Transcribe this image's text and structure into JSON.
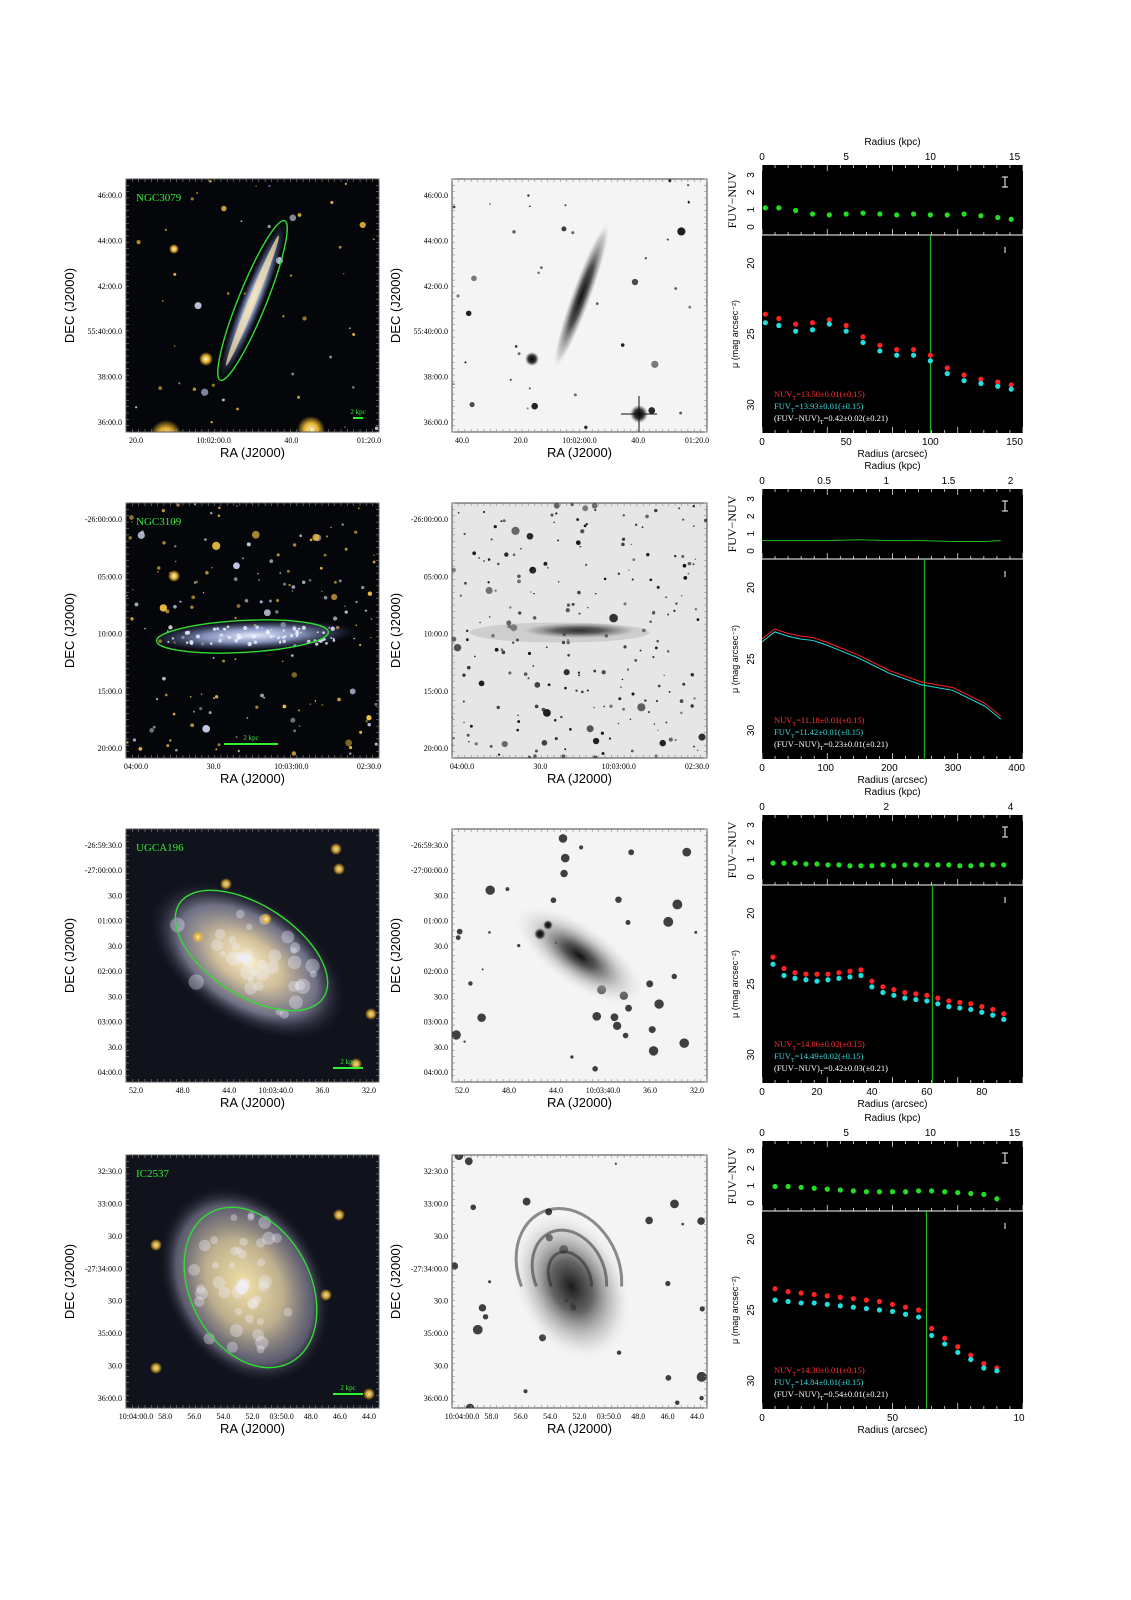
{
  "figure": {
    "rows": [
      {
        "galaxy": "NGC3079",
        "scale_bar_label": "2 kpc",
        "ra_label": "RA (J2000)",
        "dec_label": "DEC (J2000)",
        "color_image": {
          "dec_ticks": [
            "46:00.0",
            "44:00.0",
            "42:00.0",
            "55:40:00.0",
            "38:00.0",
            "36:00.0"
          ],
          "ra_ticks": [
            "20.0",
            "10:02:00.0",
            "40.0",
            "01:20.0"
          ]
        },
        "gray_image": {
          "dec_ticks": [
            "46:00.0",
            "44:00.0",
            "42:00.0",
            "55:40:00.0",
            "38:00.0",
            "36:00.0"
          ],
          "ra_ticks": [
            "40.0",
            "20.0",
            "10:02:00.0",
            "40.0",
            "01:20.0"
          ]
        },
        "profile": {
          "top_axis_label": "Radius (kpc)",
          "top_ticks": [
            "0",
            "5",
            "10",
            "15"
          ],
          "color_ylabel": "FUV−NUV",
          "color_yticks": [
            "3",
            "2",
            "1",
            "0"
          ],
          "sb_ylabel": "μ (mag arcsec⁻²)",
          "sb_yticks": [
            "20",
            "25",
            "30"
          ],
          "xlabel": "Radius (arcsec)",
          "x_ticks": [
            "0",
            "50",
            "100",
            "150"
          ],
          "nuv_text": "NUV",
          "nuv_sub": "T",
          "nuv_value": "=13.50±0.01(±0.15)",
          "fuv_text": "FUV",
          "fuv_sub": "T",
          "fuv_value": "=13.93±0.01(±0.15)",
          "col_text": "(FUV−NUV)",
          "col_sub": "T",
          "col_value": "=0.42±0.02(±0.21)"
        }
      },
      {
        "galaxy": "NGC3109",
        "scale_bar_label": "2 kpc",
        "ra_label": "RA (J2000)",
        "dec_label": "DEC (J2000)",
        "color_image": {
          "dec_ticks": [
            "-26:00:00.0",
            "05:00.0",
            "10:00.0",
            "15:00.0",
            "20:00.0"
          ],
          "ra_ticks": [
            "04:00.0",
            "30.0",
            "10:03:00.0",
            "02:30.0"
          ]
        },
        "gray_image": {
          "dec_ticks": [
            "-26:00:00.0",
            "05:00.0",
            "10:00.0",
            "15:00.0",
            "20:00.0"
          ],
          "ra_ticks": [
            "04:00.0",
            "30.0",
            "10:03:00.0",
            "02:30.0"
          ]
        },
        "profile": {
          "top_axis_label": "Radius (kpc)",
          "top_ticks": [
            "0",
            "0.5",
            "1",
            "1.5",
            "2"
          ],
          "color_ylabel": "FUV−NUV",
          "color_yticks": [
            "3",
            "2",
            "1",
            "0"
          ],
          "sb_ylabel": "μ (mag arcsec⁻²)",
          "sb_yticks": [
            "20",
            "25",
            "30"
          ],
          "xlabel": "Radius (arcsec)",
          "x_ticks": [
            "0",
            "100",
            "200",
            "300",
            "400"
          ],
          "nuv_text": "NUV",
          "nuv_sub": "T",
          "nuv_value": "=11.18±0.01(±0.15)",
          "fuv_text": "FUV",
          "fuv_sub": "T",
          "fuv_value": "=11.42±0.01(±0.15)",
          "col_text": "(FUV−NUV)",
          "col_sub": "T",
          "col_value": "=0.23±0.01(±0.21)"
        }
      },
      {
        "galaxy": "UGCA196",
        "scale_bar_label": "2 kpc",
        "ra_label": "RA (J2000)",
        "dec_label": "DEC (J2000)",
        "color_image": {
          "dec_ticks": [
            "-26:59:30.0",
            "-27:00:00.0",
            "30.0",
            "01:00.0",
            "30.0",
            "02:00.0",
            "30.0",
            "03:00.0",
            "30.0",
            "04:00.0"
          ],
          "ra_ticks": [
            "52.0",
            "48.0",
            "44.0",
            "10:03:40.0",
            "36.0",
            "32.0"
          ]
        },
        "gray_image": {
          "dec_ticks": [
            "-26:59:30.0",
            "-27:00:00.0",
            "30.0",
            "01:00.0",
            "30.0",
            "02:00.0",
            "30.0",
            "03:00.0",
            "30.0",
            "04:00.0"
          ],
          "ra_ticks": [
            "52.0",
            "48.0",
            "44.0",
            "10:03:40.0",
            "36.0",
            "32.0"
          ]
        },
        "profile": {
          "top_axis_label": "Radius (kpc)",
          "top_ticks": [
            "0",
            "2",
            "4"
          ],
          "color_ylabel": "FUV−NUV",
          "color_yticks": [
            "3",
            "2",
            "1",
            "0"
          ],
          "sb_ylabel": "μ (mag arcsec⁻²)",
          "sb_yticks": [
            "20",
            "25",
            "30"
          ],
          "xlabel": "Radius (arcsec)",
          "x_ticks": [
            "0",
            "20",
            "40",
            "60",
            "80"
          ],
          "nuv_text": "NUV",
          "nuv_sub": "T",
          "nuv_value": "=14.06±0.02(±0.15)",
          "fuv_text": "FUV",
          "fuv_sub": "T",
          "fuv_value": "=14.49±0.02(±0.15)",
          "col_text": "(FUV−NUV)",
          "col_sub": "T",
          "col_value": "=0.42±0.03(±0.21)"
        }
      },
      {
        "galaxy": "IC2537",
        "scale_bar_label": "2 kpc",
        "ra_label": "RA (J2000)",
        "dec_label": "DEC (J2000)",
        "color_image": {
          "dec_ticks": [
            "32:30.0",
            "33:00.0",
            "30.0",
            "-27:34:00.0",
            "30.0",
            "35:00.0",
            "30.0",
            "36:00.0"
          ],
          "ra_ticks": [
            "10:04:00.0",
            "58.0",
            "56.0",
            "54.0",
            "52.0",
            "03:50.0",
            "48.0",
            "46.0",
            "44.0"
          ]
        },
        "gray_image": {
          "dec_ticks": [
            "32:30.0",
            "33:00.0",
            "30.0",
            "-27:34:00.0",
            "30.0",
            "35:00.0",
            "30.0",
            "36:00.0"
          ],
          "ra_ticks": [
            "10:04:00.0",
            "58.0",
            "56.0",
            "54.0",
            "52.0",
            "03:50.0",
            "48.0",
            "46.0",
            "44.0"
          ]
        },
        "profile": {
          "top_axis_label": "Radius (kpc)",
          "top_ticks": [
            "0",
            "5",
            "10",
            "15"
          ],
          "color_ylabel": "FUV−NUV",
          "color_yticks": [
            "3",
            "2",
            "1",
            "0"
          ],
          "sb_ylabel": "μ (mag arcsec⁻²)",
          "sb_yticks": [
            "20",
            "25",
            "30"
          ],
          "xlabel": "Radius (arcsec)",
          "x_ticks": [
            "0",
            "50",
            "10"
          ],
          "nuv_text": "NUV",
          "nuv_sub": "T",
          "nuv_value": "=14.30±0.01(±0.15)",
          "fuv_text": "FUV",
          "fuv_sub": "T",
          "fuv_value": "=14.84±0.01(±0.15)",
          "col_text": "(FUV−NUV)",
          "col_sub": "T",
          "col_value": "=0.54±0.01(±0.21)"
        }
      }
    ]
  },
  "chart_data": [
    {
      "type": "scatter",
      "galaxy": "NGC3079",
      "xlabel": "Radius (arcsec)",
      "ylabel": "μ (mag arcsec⁻²)",
      "top_axis_label": "Radius (kpc)",
      "xlim": [
        0,
        155
      ],
      "ylim_sb": [
        32,
        18
      ],
      "ylim_color": [
        -0.8,
        3.2
      ],
      "vline_x": 100,
      "series": [
        {
          "name": "FUV−NUV",
          "color": "#22dd22",
          "x": [
            2,
            10,
            20,
            30,
            40,
            50,
            60,
            70,
            80,
            90,
            100,
            110,
            120,
            130,
            140,
            148
          ],
          "y": [
            0.75,
            0.75,
            0.6,
            0.4,
            0.35,
            0.4,
            0.45,
            0.4,
            0.35,
            0.4,
            0.35,
            0.35,
            0.4,
            0.3,
            0.2,
            0.1
          ]
        },
        {
          "name": "NUV",
          "color": "#ff2222",
          "x": [
            2,
            10,
            20,
            30,
            40,
            50,
            60,
            70,
            80,
            90,
            100,
            110,
            120,
            130,
            140,
            148
          ],
          "y": [
            23.6,
            23.9,
            24.3,
            24.2,
            24.0,
            24.4,
            25.2,
            25.8,
            26.1,
            26.1,
            26.5,
            27.4,
            27.9,
            28.2,
            28.4,
            28.6
          ]
        },
        {
          "name": "FUV",
          "color": "#22dddd",
          "x": [
            2,
            10,
            20,
            30,
            40,
            50,
            60,
            70,
            80,
            90,
            100,
            110,
            120,
            130,
            140,
            148
          ],
          "y": [
            24.2,
            24.4,
            24.8,
            24.7,
            24.3,
            24.8,
            25.6,
            26.2,
            26.5,
            26.5,
            26.9,
            27.8,
            28.3,
            28.5,
            28.7,
            28.9
          ]
        }
      ]
    },
    {
      "type": "line",
      "galaxy": "NGC3109",
      "xlabel": "Radius (arcsec)",
      "ylabel": "μ (mag arcsec⁻²)",
      "top_axis_label": "Radius (kpc)",
      "xlim": [
        0,
        410
      ],
      "ylim_sb": [
        32,
        18
      ],
      "ylim_color": [
        -0.8,
        3.2
      ],
      "vline_x": 255,
      "series": [
        {
          "name": "FUV−NUV",
          "color": "#22bb22",
          "x": [
            0,
            50,
            100,
            150,
            200,
            250,
            300,
            350,
            375
          ],
          "y": [
            0.25,
            0.25,
            0.25,
            0.3,
            0.25,
            0.25,
            0.2,
            0.2,
            0.25
          ]
        },
        {
          "name": "NUV",
          "color": "#ff2222",
          "x": [
            0,
            20,
            40,
            60,
            80,
            100,
            150,
            200,
            250,
            300,
            350,
            375
          ],
          "y": [
            23.6,
            22.9,
            23.2,
            23.4,
            23.5,
            23.8,
            24.7,
            25.8,
            26.6,
            27.0,
            28.1,
            29.0
          ]
        },
        {
          "name": "FUV",
          "color": "#22dddd",
          "x": [
            0,
            20,
            40,
            60,
            80,
            100,
            150,
            200,
            250,
            300,
            350,
            375
          ],
          "y": [
            23.8,
            23.1,
            23.4,
            23.6,
            23.7,
            24.0,
            24.9,
            26.0,
            26.8,
            27.2,
            28.3,
            29.2
          ]
        }
      ]
    },
    {
      "type": "scatter",
      "galaxy": "UGCA196",
      "xlabel": "Radius (arcsec)",
      "ylabel": "μ (mag arcsec⁻²)",
      "top_axis_label": "Radius (kpc)",
      "xlim": [
        0,
        95
      ],
      "ylim_sb": [
        32,
        18
      ],
      "ylim_color": [
        -0.8,
        3.2
      ],
      "vline_x": 62,
      "series": [
        {
          "name": "FUV−NUV",
          "color": "#22dd22",
          "x": [
            4,
            8,
            12,
            16,
            20,
            24,
            28,
            32,
            36,
            40,
            44,
            48,
            52,
            56,
            60,
            64,
            68,
            72,
            76,
            80,
            84,
            88
          ],
          "y": [
            0.45,
            0.45,
            0.45,
            0.4,
            0.4,
            0.35,
            0.35,
            0.3,
            0.3,
            0.3,
            0.35,
            0.3,
            0.35,
            0.35,
            0.35,
            0.35,
            0.35,
            0.3,
            0.3,
            0.35,
            0.35,
            0.35
          ]
        },
        {
          "name": "NUV",
          "color": "#ff2222",
          "x": [
            4,
            8,
            12,
            16,
            20,
            24,
            28,
            32,
            36,
            40,
            44,
            48,
            52,
            56,
            60,
            64,
            68,
            72,
            76,
            80,
            84,
            88
          ],
          "y": [
            23.1,
            23.9,
            24.2,
            24.3,
            24.3,
            24.3,
            24.2,
            24.1,
            24.0,
            24.8,
            25.2,
            25.4,
            25.6,
            25.7,
            25.8,
            26.0,
            26.2,
            26.3,
            26.4,
            26.6,
            26.8,
            27.1
          ]
        },
        {
          "name": "FUV",
          "color": "#22dddd",
          "x": [
            4,
            8,
            12,
            16,
            20,
            24,
            28,
            32,
            36,
            40,
            44,
            48,
            52,
            56,
            60,
            64,
            68,
            72,
            76,
            80,
            84,
            88
          ],
          "y": [
            23.6,
            24.4,
            24.6,
            24.7,
            24.8,
            24.7,
            24.6,
            24.5,
            24.4,
            25.2,
            25.6,
            25.8,
            26.0,
            26.1,
            26.2,
            26.4,
            26.6,
            26.7,
            26.8,
            27.0,
            27.2,
            27.5
          ]
        }
      ]
    },
    {
      "type": "scatter",
      "galaxy": "IC2537",
      "xlabel": "Radius (arcsec)",
      "ylabel": "μ (mag arcsec⁻²)",
      "top_axis_label": "Radius (kpc)",
      "xlim": [
        0,
        100
      ],
      "ylim_sb": [
        32,
        18
      ],
      "ylim_color": [
        -0.8,
        3.2
      ],
      "vline_x": 63,
      "series": [
        {
          "name": "FUV−NUV",
          "color": "#22dd22",
          "x": [
            5,
            10,
            15,
            20,
            25,
            30,
            35,
            40,
            45,
            50,
            55,
            60,
            65,
            70,
            75,
            80,
            85,
            90
          ],
          "y": [
            0.6,
            0.6,
            0.55,
            0.5,
            0.45,
            0.4,
            0.35,
            0.3,
            0.3,
            0.3,
            0.3,
            0.35,
            0.35,
            0.3,
            0.25,
            0.2,
            0.15,
            -0.1
          ]
        },
        {
          "name": "NUV",
          "color": "#ff2222",
          "x": [
            5,
            10,
            15,
            20,
            25,
            30,
            35,
            40,
            45,
            50,
            55,
            60,
            65,
            70,
            75,
            80,
            85,
            90
          ],
          "y": [
            23.5,
            23.7,
            23.8,
            23.9,
            24.0,
            24.1,
            24.2,
            24.3,
            24.4,
            24.6,
            24.8,
            25.0,
            26.3,
            27.0,
            27.6,
            28.2,
            28.8,
            29.1
          ]
        },
        {
          "name": "FUV",
          "color": "#22dddd",
          "x": [
            5,
            10,
            15,
            20,
            25,
            30,
            35,
            40,
            45,
            50,
            55,
            60,
            65,
            70,
            75,
            80,
            85,
            90
          ],
          "y": [
            24.3,
            24.4,
            24.5,
            24.5,
            24.6,
            24.7,
            24.8,
            24.9,
            25.0,
            25.1,
            25.3,
            25.5,
            26.8,
            27.4,
            28.0,
            28.5,
            29.1,
            29.3
          ]
        }
      ]
    }
  ]
}
